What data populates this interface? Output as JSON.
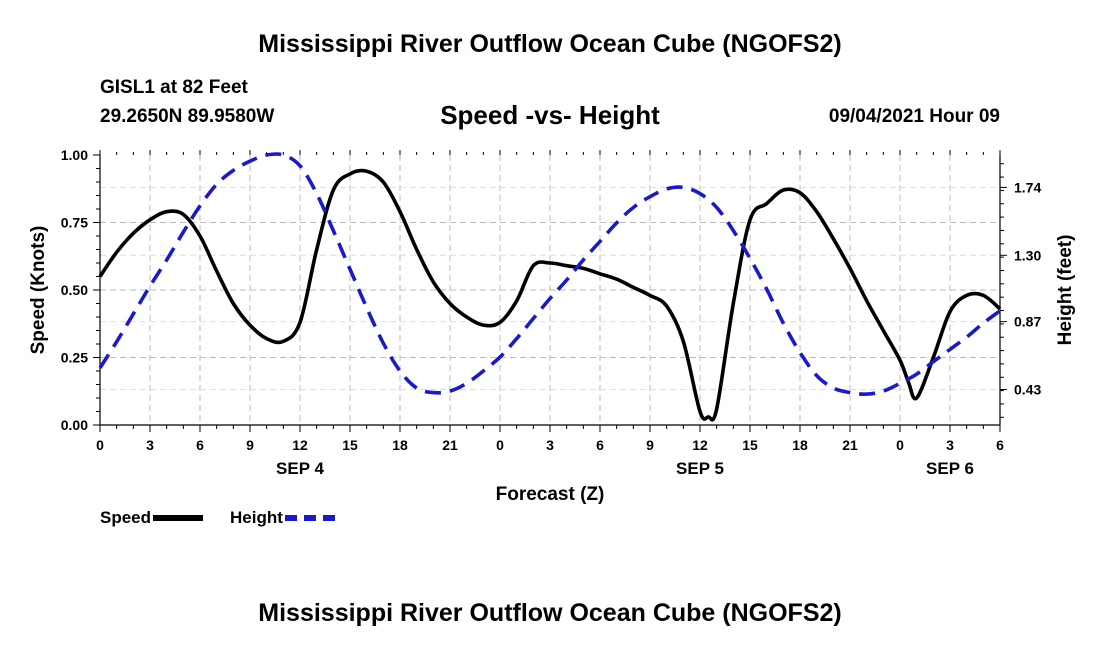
{
  "header": {
    "title": "Mississippi River Outflow Ocean Cube (NGOFS2)",
    "station": "GISL1 at 82 Feet",
    "coords": "29.2650N  89.9580W",
    "subtitle": "Speed -vs- Height",
    "datetime": "09/04/2021 Hour 09"
  },
  "footer": {
    "title": "Mississippi River Outflow Ocean Cube (NGOFS2)"
  },
  "legend": {
    "speed_label": "Speed",
    "height_label": "Height"
  },
  "colors": {
    "speed": "#000000",
    "height": "#1a1acc",
    "grid": "#bbbbbb"
  },
  "chart_data": {
    "type": "line",
    "xlabel": "Forecast (Z)",
    "ylabel_left": "Speed (Knots)",
    "ylabel_right": "Height (feet)",
    "xlim": [
      0,
      54
    ],
    "ylim_left": [
      0,
      1
    ],
    "ylim_right": [
      0.2,
      1.95
    ],
    "grid": true,
    "x_tick_labels": [
      "0",
      "3",
      "6",
      "9",
      "12",
      "15",
      "18",
      "21",
      "0",
      "3",
      "6",
      "9",
      "12",
      "15",
      "18",
      "21",
      "0",
      "3",
      "6"
    ],
    "y_left_ticks": [
      0,
      0.25,
      0.5,
      0.75,
      1.0
    ],
    "y_left_tick_labels": [
      "0.00",
      "0.25",
      "0.50",
      "0.75",
      "1.00"
    ],
    "y_right_ticks": [
      0.43,
      0.87,
      1.3,
      1.74
    ],
    "y_right_tick_labels": [
      "0.43",
      "0.87",
      "1.30",
      "1.74"
    ],
    "date_labels": [
      {
        "text": "SEP 4",
        "x": 12
      },
      {
        "text": "SEP 5",
        "x": 36
      },
      {
        "text": "SEP 6",
        "x": 51
      }
    ],
    "series": [
      {
        "name": "Speed",
        "axis": "left",
        "style": "solid",
        "x": [
          0,
          1,
          2,
          3,
          4,
          5,
          6,
          7,
          8,
          9,
          10,
          11,
          12,
          13,
          14,
          15,
          16,
          17,
          18,
          19,
          20,
          21,
          22,
          23,
          24,
          25,
          26,
          27,
          28,
          29,
          30,
          31,
          32,
          33,
          34,
          35,
          36,
          36.5,
          37,
          38,
          39,
          40,
          41,
          42,
          43,
          44,
          45,
          46,
          47,
          48,
          48.5,
          49,
          50,
          51,
          52,
          53,
          54
        ],
        "y": [
          0.55,
          0.64,
          0.71,
          0.76,
          0.79,
          0.78,
          0.7,
          0.57,
          0.45,
          0.37,
          0.32,
          0.31,
          0.38,
          0.65,
          0.87,
          0.93,
          0.94,
          0.9,
          0.79,
          0.65,
          0.53,
          0.45,
          0.4,
          0.37,
          0.38,
          0.46,
          0.59,
          0.6,
          0.59,
          0.58,
          0.56,
          0.54,
          0.51,
          0.48,
          0.44,
          0.31,
          0.05,
          0.03,
          0.06,
          0.45,
          0.76,
          0.82,
          0.87,
          0.86,
          0.79,
          0.69,
          0.58,
          0.46,
          0.35,
          0.24,
          0.16,
          0.1,
          0.25,
          0.42,
          0.48,
          0.48,
          0.43
        ]
      },
      {
        "name": "Height",
        "axis": "right",
        "style": "dashed",
        "x": [
          0,
          1,
          2,
          3,
          4,
          5,
          6,
          7,
          8,
          9,
          10,
          11,
          12,
          13,
          14,
          15,
          16,
          17,
          18,
          19,
          20,
          21,
          22,
          23,
          24,
          25,
          26,
          27,
          28,
          29,
          30,
          31,
          32,
          33,
          34,
          35,
          36,
          37,
          38,
          39,
          40,
          41,
          42,
          43,
          44,
          45,
          46,
          47,
          48,
          49,
          50,
          51,
          52,
          53,
          54
        ],
        "y": [
          0.57,
          0.74,
          0.92,
          1.1,
          1.27,
          1.45,
          1.62,
          1.76,
          1.85,
          1.91,
          1.95,
          1.95,
          1.88,
          1.7,
          1.46,
          1.21,
          0.96,
          0.73,
          0.55,
          0.44,
          0.41,
          0.42,
          0.47,
          0.55,
          0.64,
          0.76,
          0.89,
          1.02,
          1.14,
          1.27,
          1.39,
          1.51,
          1.61,
          1.68,
          1.73,
          1.74,
          1.7,
          1.61,
          1.46,
          1.28,
          1.08,
          0.86,
          0.67,
          0.52,
          0.44,
          0.41,
          0.4,
          0.42,
          0.47,
          0.53,
          0.61,
          0.69,
          0.77,
          0.86,
          0.94
        ]
      }
    ]
  }
}
